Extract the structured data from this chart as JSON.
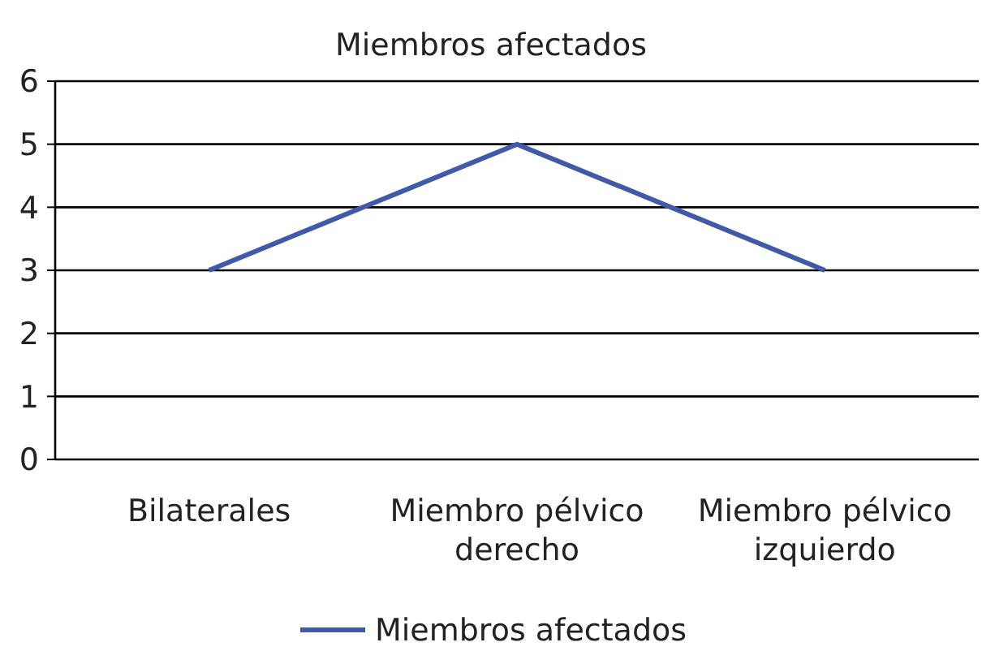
{
  "chart_data": {
    "type": "line",
    "title": "Miembros afectados",
    "categories": [
      "Bilaterales",
      "Miembro pélvico derecho",
      "Miembro pélvico izquierdo"
    ],
    "series": [
      {
        "name": "Miembros afectados",
        "color": "#3f5aa8",
        "values": [
          3,
          5,
          3
        ]
      }
    ],
    "ylim": [
      0,
      6
    ],
    "yticks": [
      0,
      1,
      2,
      3,
      4,
      5,
      6
    ],
    "grid": "y",
    "legend": "bottom",
    "marker": "none",
    "line_style": "solid"
  }
}
